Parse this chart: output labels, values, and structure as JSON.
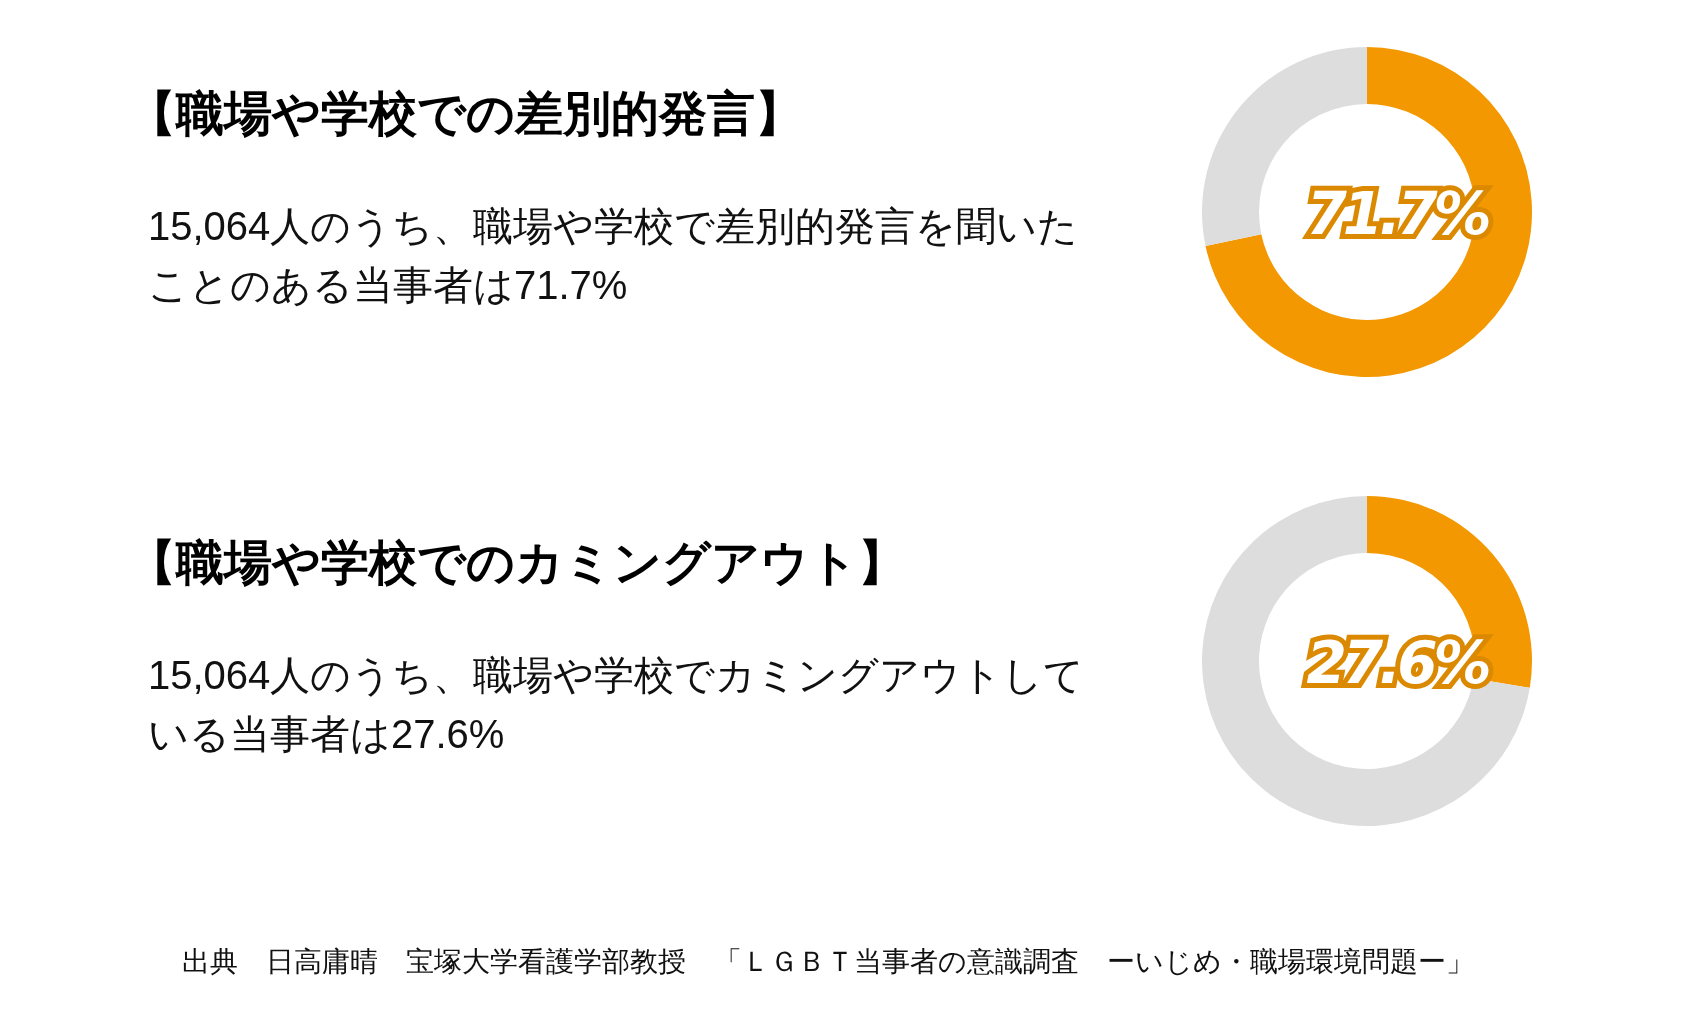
{
  "chart_data": [
    {
      "type": "donut",
      "title": "【職場や学校での差別的発言】",
      "subtitle": "15,064人のうち、職場や学校で差別的発言を聞いたことのある当事者は71.7%",
      "categories": [
        null,
        null
      ],
      "values": [
        71.7,
        28.3
      ],
      "colors": [
        "#f39800",
        "#dddddd"
      ],
      "value_labels": [
        "71.7%",
        null
      ]
    },
    {
      "type": "donut",
      "title": "【職場や学校でのカミングアウト】",
      "subtitle": "15,064人のうち、職場や学校でカミングアウトしている当事者は27.6%",
      "categories": [
        null,
        null
      ],
      "values": [
        27.6,
        72.4
      ],
      "colors": [
        "#f39800",
        "#dddddd"
      ],
      "value_labels": [
        "27.6%",
        null
      ],
      "annotations": [
        "出典　日高庸晴　宝塚大学看護学部教授　「ＬＧＢＴ当事者の意識調査　ーいじめ・職場環境問題ー」"
      ]
    }
  ]
}
